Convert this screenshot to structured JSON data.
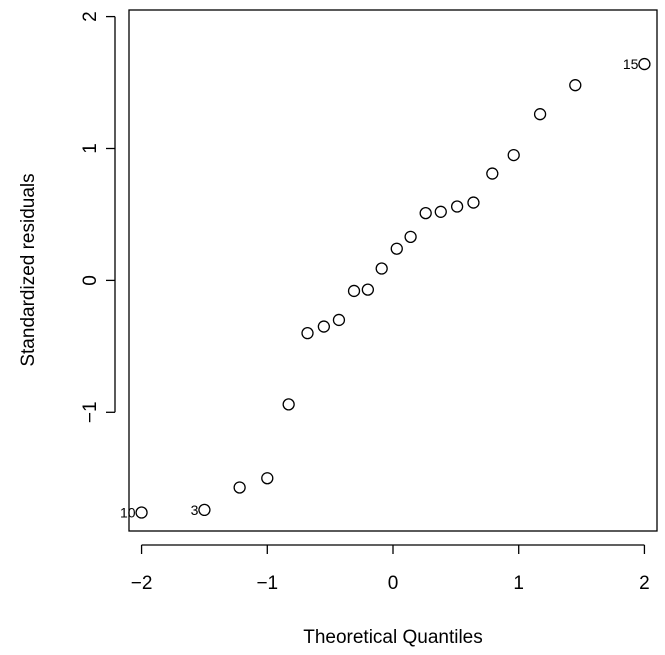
{
  "chart_data": {
    "type": "scatter",
    "title": "",
    "xlabel": "Theoretical Quantiles",
    "ylabel": "Standardized residuals",
    "xlim": [
      -2.1,
      2.1
    ],
    "ylim": [
      -1.9,
      2.05
    ],
    "grid": false,
    "x_ticks": [
      -2,
      -1,
      0,
      1,
      2
    ],
    "x_tick_labels": [
      "−2",
      "−1",
      "0",
      "1",
      "2"
    ],
    "y_ticks": [
      -1,
      0,
      1,
      2
    ],
    "y_tick_labels": [
      "−1",
      "0",
      "1",
      "2"
    ],
    "points": [
      {
        "x": -2.0,
        "y": -1.76
      },
      {
        "x": -1.5,
        "y": -1.74
      },
      {
        "x": -1.22,
        "y": -1.57
      },
      {
        "x": -1.0,
        "y": -1.5
      },
      {
        "x": -0.83,
        "y": -0.94
      },
      {
        "x": -0.68,
        "y": -0.4
      },
      {
        "x": -0.55,
        "y": -0.35
      },
      {
        "x": -0.43,
        "y": -0.3
      },
      {
        "x": -0.31,
        "y": -0.08
      },
      {
        "x": -0.2,
        "y": -0.07
      },
      {
        "x": -0.09,
        "y": 0.09
      },
      {
        "x": 0.03,
        "y": 0.24
      },
      {
        "x": 0.14,
        "y": 0.33
      },
      {
        "x": 0.26,
        "y": 0.51
      },
      {
        "x": 0.38,
        "y": 0.52
      },
      {
        "x": 0.51,
        "y": 0.56
      },
      {
        "x": 0.64,
        "y": 0.59
      },
      {
        "x": 0.79,
        "y": 0.81
      },
      {
        "x": 0.96,
        "y": 0.95
      },
      {
        "x": 1.17,
        "y": 1.26
      },
      {
        "x": 1.45,
        "y": 1.48
      },
      {
        "x": 2.0,
        "y": 1.64
      }
    ],
    "point_labels": [
      {
        "point": 0,
        "text": "10"
      },
      {
        "point": 1,
        "text": "3"
      },
      {
        "point": 21,
        "text": "15"
      }
    ]
  }
}
